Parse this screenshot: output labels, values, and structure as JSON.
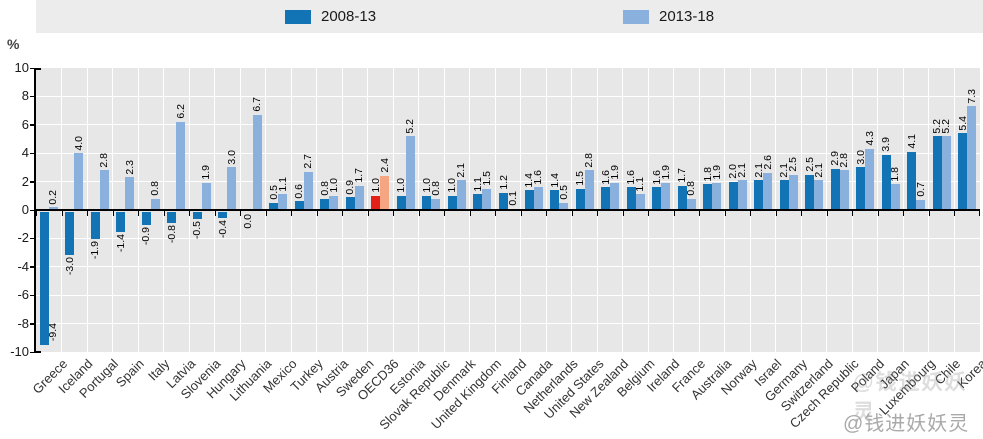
{
  "legend": {
    "series1_label": "2008-13",
    "series2_label": "2013-18"
  },
  "axis": {
    "unit_label": "%",
    "yticks": [
      10,
      8,
      6,
      4,
      2,
      0,
      -2,
      -4,
      -6,
      -8,
      -10
    ]
  },
  "watermark": {
    "main_text": "@钱进妖妖灵",
    "faint_text": "@钱进妖妖灵"
  },
  "colors": {
    "series1": "#1273b5",
    "series2": "#8ab1dd",
    "highlight_series1": "#e32119",
    "highlight_series2": "#f5a582",
    "plot_background": "#e7e7e7",
    "legend_background": "#ececec"
  },
  "chart_data": {
    "type": "bar",
    "title": "",
    "xlabel": "",
    "ylabel": "%",
    "ylim": [
      -10,
      10
    ],
    "grid": true,
    "legend_position": "top",
    "categories": [
      "Greece",
      "Iceland",
      "Portugal",
      "Spain",
      "Italy",
      "Latvia",
      "Slovenia",
      "Hungary",
      "Lithuania",
      "Mexico",
      "Turkey",
      "Austria",
      "Sweden",
      "OECD36",
      "Estonia",
      "Slovak Republic",
      "Denmark",
      "United Kingdom",
      "Finland",
      "Canada",
      "Netherlands",
      "United States",
      "New Zealand",
      "Belgium",
      "Ireland",
      "France",
      "Australia",
      "Norway",
      "Israel",
      "Germany",
      "Switzerland",
      "Czech Republic",
      "Poland",
      "Japan",
      "Luxembourg",
      "Chile",
      "Korea"
    ],
    "series": [
      {
        "name": "2008-13",
        "color": "#1273b5",
        "values": [
          -9.4,
          -3.0,
          -1.9,
          -1.4,
          -0.9,
          -0.8,
          -0.5,
          -0.4,
          0.0,
          0.5,
          0.6,
          0.8,
          0.9,
          1.0,
          1.0,
          1.0,
          1.0,
          1.1,
          1.2,
          1.4,
          1.4,
          1.5,
          1.6,
          1.6,
          1.6,
          1.7,
          1.8,
          2.0,
          2.1,
          2.1,
          2.5,
          2.9,
          3.0,
          3.9,
          4.1,
          5.2,
          5.4
        ]
      },
      {
        "name": "2013-18",
        "color": "#8ab1dd",
        "values": [
          0.2,
          4.0,
          2.8,
          2.3,
          0.8,
          6.2,
          1.9,
          3.0,
          6.7,
          1.1,
          2.7,
          1.0,
          1.7,
          2.4,
          5.2,
          0.8,
          2.1,
          1.5,
          0.1,
          1.6,
          0.5,
          2.8,
          1.9,
          1.1,
          1.9,
          0.8,
          1.9,
          2.1,
          2.6,
          2.5,
          2.1,
          2.8,
          4.3,
          1.8,
          0.7,
          5.2,
          7.3
        ]
      }
    ],
    "highlight": {
      "category": "OECD36",
      "index": 13,
      "series1_color": "#e32119",
      "series2_color": "#f5a582"
    }
  }
}
